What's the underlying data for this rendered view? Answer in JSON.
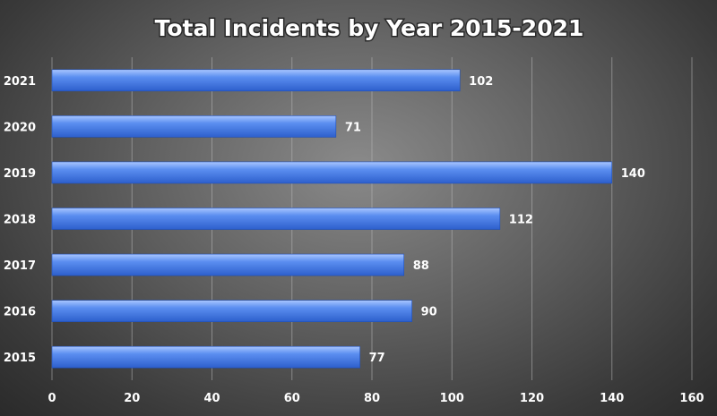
{
  "chart_data": {
    "type": "bar",
    "orientation": "horizontal",
    "title": "Total Incidents by Year 2015-2021",
    "categories": [
      "2021",
      "2020",
      "2019",
      "2018",
      "2017",
      "2016",
      "2015"
    ],
    "values": [
      102,
      71,
      140,
      112,
      88,
      90,
      77
    ],
    "data_labels": [
      "102",
      "71",
      "140",
      "112",
      "88",
      "90",
      "77"
    ],
    "xlim": [
      0,
      160
    ],
    "x_ticks": [
      "0",
      "20",
      "40",
      "60",
      "80",
      "100",
      "120",
      "140",
      "160"
    ],
    "xlabel": "",
    "ylabel": "",
    "grid": "vertical",
    "legend": "none",
    "colors": {
      "bar": "#5b8ef0",
      "bar_light": "#8fb4ff",
      "bar_dark": "#2e62d0",
      "background": "#5e5e5e",
      "text": "#ffffff"
    }
  }
}
